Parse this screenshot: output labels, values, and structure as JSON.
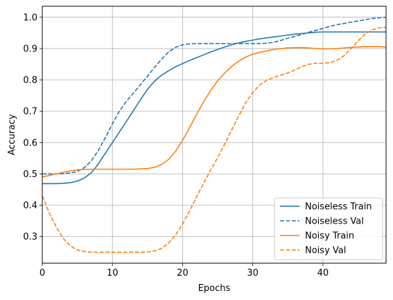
{
  "chart_data": {
    "type": "line",
    "title": "",
    "xlabel": "Epochs",
    "ylabel": "Accuracy",
    "xlim": [
      0,
      49
    ],
    "ylim": [
      0.215,
      1.035
    ],
    "xticks": [
      0,
      10,
      20,
      30,
      40
    ],
    "yticks": [
      0.3,
      0.4,
      0.5,
      0.6,
      0.7,
      0.8,
      0.9,
      1.0
    ],
    "xtick_labels": [
      "0",
      "10",
      "20",
      "30",
      "40"
    ],
    "ytick_labels": [
      "0.3",
      "0.4",
      "0.5",
      "0.6",
      "0.7",
      "0.8",
      "0.9",
      "1.0"
    ],
    "grid": true,
    "legend_position": "bottom-right",
    "series": [
      {
        "name": "Noiseless Train",
        "color": "#1f77b4",
        "dash": "solid",
        "x": [
          0,
          1,
          2,
          3,
          4,
          5,
          6,
          7,
          8,
          9,
          10,
          11,
          12,
          13,
          14,
          15,
          16,
          17,
          18,
          19,
          20,
          21,
          22,
          23,
          24,
          25,
          26,
          27,
          28,
          29,
          30,
          31,
          32,
          33,
          34,
          35,
          36,
          37,
          38,
          39,
          40,
          41,
          42,
          43,
          44,
          45,
          46,
          47,
          48,
          49
        ],
        "y": [
          0.469,
          0.469,
          0.469,
          0.47,
          0.472,
          0.477,
          0.487,
          0.504,
          0.532,
          0.566,
          0.6,
          0.634,
          0.668,
          0.702,
          0.737,
          0.77,
          0.796,
          0.815,
          0.829,
          0.842,
          0.852,
          0.862,
          0.871,
          0.88,
          0.889,
          0.897,
          0.905,
          0.912,
          0.918,
          0.923,
          0.927,
          0.931,
          0.934,
          0.937,
          0.94,
          0.943,
          0.946,
          0.948,
          0.95,
          0.952,
          0.953,
          0.953,
          0.953,
          0.953,
          0.953,
          0.953,
          0.953,
          0.953,
          0.953,
          0.953
        ]
      },
      {
        "name": "Noiseless Val",
        "color": "#1f77b4",
        "dash": "dashed",
        "x": [
          0,
          1,
          2,
          3,
          4,
          5,
          6,
          7,
          8,
          9,
          10,
          11,
          12,
          13,
          14,
          15,
          16,
          17,
          18,
          19,
          20,
          21,
          22,
          23,
          24,
          25,
          26,
          27,
          28,
          29,
          30,
          31,
          32,
          33,
          34,
          35,
          36,
          37,
          38,
          39,
          40,
          41,
          42,
          43,
          44,
          45,
          46,
          47,
          48,
          49
        ],
        "y": [
          0.5,
          0.5,
          0.5,
          0.501,
          0.503,
          0.508,
          0.52,
          0.542,
          0.575,
          0.616,
          0.66,
          0.7,
          0.732,
          0.758,
          0.785,
          0.812,
          0.84,
          0.866,
          0.889,
          0.904,
          0.912,
          0.915,
          0.916,
          0.916,
          0.916,
          0.916,
          0.916,
          0.916,
          0.916,
          0.916,
          0.916,
          0.916,
          0.917,
          0.92,
          0.926,
          0.933,
          0.939,
          0.945,
          0.952,
          0.958,
          0.964,
          0.971,
          0.976,
          0.98,
          0.984,
          0.988,
          0.992,
          0.996,
          0.998,
          1.0
        ]
      },
      {
        "name": "Noisy Train",
        "color": "#ff7f0e",
        "dash": "solid",
        "x": [
          0,
          1,
          2,
          3,
          4,
          5,
          6,
          7,
          8,
          9,
          10,
          11,
          12,
          13,
          14,
          15,
          16,
          17,
          18,
          19,
          20,
          21,
          22,
          23,
          24,
          25,
          26,
          27,
          28,
          29,
          30,
          31,
          32,
          33,
          34,
          35,
          36,
          37,
          38,
          39,
          40,
          41,
          42,
          43,
          44,
          45,
          46,
          47,
          48,
          49
        ],
        "y": [
          0.49,
          0.495,
          0.5,
          0.505,
          0.51,
          0.513,
          0.514,
          0.515,
          0.515,
          0.515,
          0.515,
          0.515,
          0.515,
          0.515,
          0.516,
          0.517,
          0.521,
          0.53,
          0.546,
          0.572,
          0.607,
          0.648,
          0.69,
          0.73,
          0.766,
          0.797,
          0.822,
          0.843,
          0.86,
          0.873,
          0.882,
          0.888,
          0.893,
          0.897,
          0.9,
          0.902,
          0.903,
          0.903,
          0.902,
          0.9,
          0.899,
          0.899,
          0.9,
          0.902,
          0.904,
          0.905,
          0.906,
          0.906,
          0.906,
          0.905
        ]
      },
      {
        "name": "Noisy Val",
        "color": "#ff7f0e",
        "dash": "dashed",
        "x": [
          0,
          1,
          2,
          3,
          4,
          5,
          6,
          7,
          8,
          9,
          10,
          11,
          12,
          13,
          14,
          15,
          16,
          17,
          18,
          19,
          20,
          21,
          22,
          23,
          24,
          25,
          26,
          27,
          28,
          29,
          30,
          31,
          32,
          33,
          34,
          35,
          36,
          37,
          38,
          39,
          40,
          41,
          42,
          43,
          44,
          45,
          46,
          47,
          48,
          49
        ],
        "y": [
          0.43,
          0.375,
          0.33,
          0.294,
          0.27,
          0.257,
          0.252,
          0.25,
          0.25,
          0.25,
          0.25,
          0.25,
          0.25,
          0.25,
          0.25,
          0.251,
          0.254,
          0.262,
          0.279,
          0.305,
          0.34,
          0.382,
          0.427,
          0.471,
          0.512,
          0.552,
          0.595,
          0.64,
          0.685,
          0.727,
          0.76,
          0.784,
          0.799,
          0.808,
          0.815,
          0.822,
          0.832,
          0.842,
          0.85,
          0.853,
          0.853,
          0.855,
          0.862,
          0.877,
          0.9,
          0.925,
          0.946,
          0.96,
          0.966,
          0.968
        ]
      }
    ]
  }
}
